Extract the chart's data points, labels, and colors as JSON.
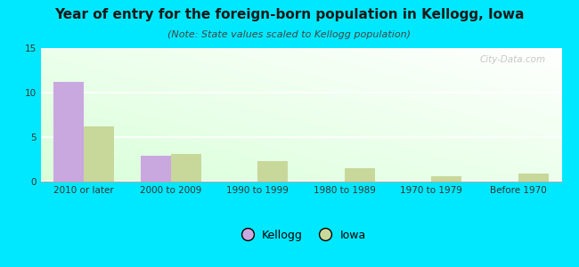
{
  "title": "Year of entry for the foreign-born population in Kellogg, Iowa",
  "subtitle": "(Note: State values scaled to Kellogg population)",
  "categories": [
    "2010 or later",
    "2000 to 2009",
    "1990 to 1999",
    "1980 to 1989",
    "1970 to 1979",
    "Before 1970"
  ],
  "kellogg_values": [
    11.2,
    2.9,
    0,
    0,
    0,
    0
  ],
  "iowa_values": [
    6.2,
    3.1,
    2.3,
    1.5,
    0.6,
    0.9
  ],
  "kellogg_color": "#c9a8e0",
  "iowa_color": "#c8d89a",
  "background_outer": "#00e8ff",
  "ylim": [
    0,
    15
  ],
  "yticks": [
    0,
    5,
    10,
    15
  ],
  "bar_width": 0.35,
  "title_fontsize": 11,
  "subtitle_fontsize": 8,
  "tick_fontsize": 7.5,
  "legend_fontsize": 9,
  "watermark_text": "City-Data.com"
}
